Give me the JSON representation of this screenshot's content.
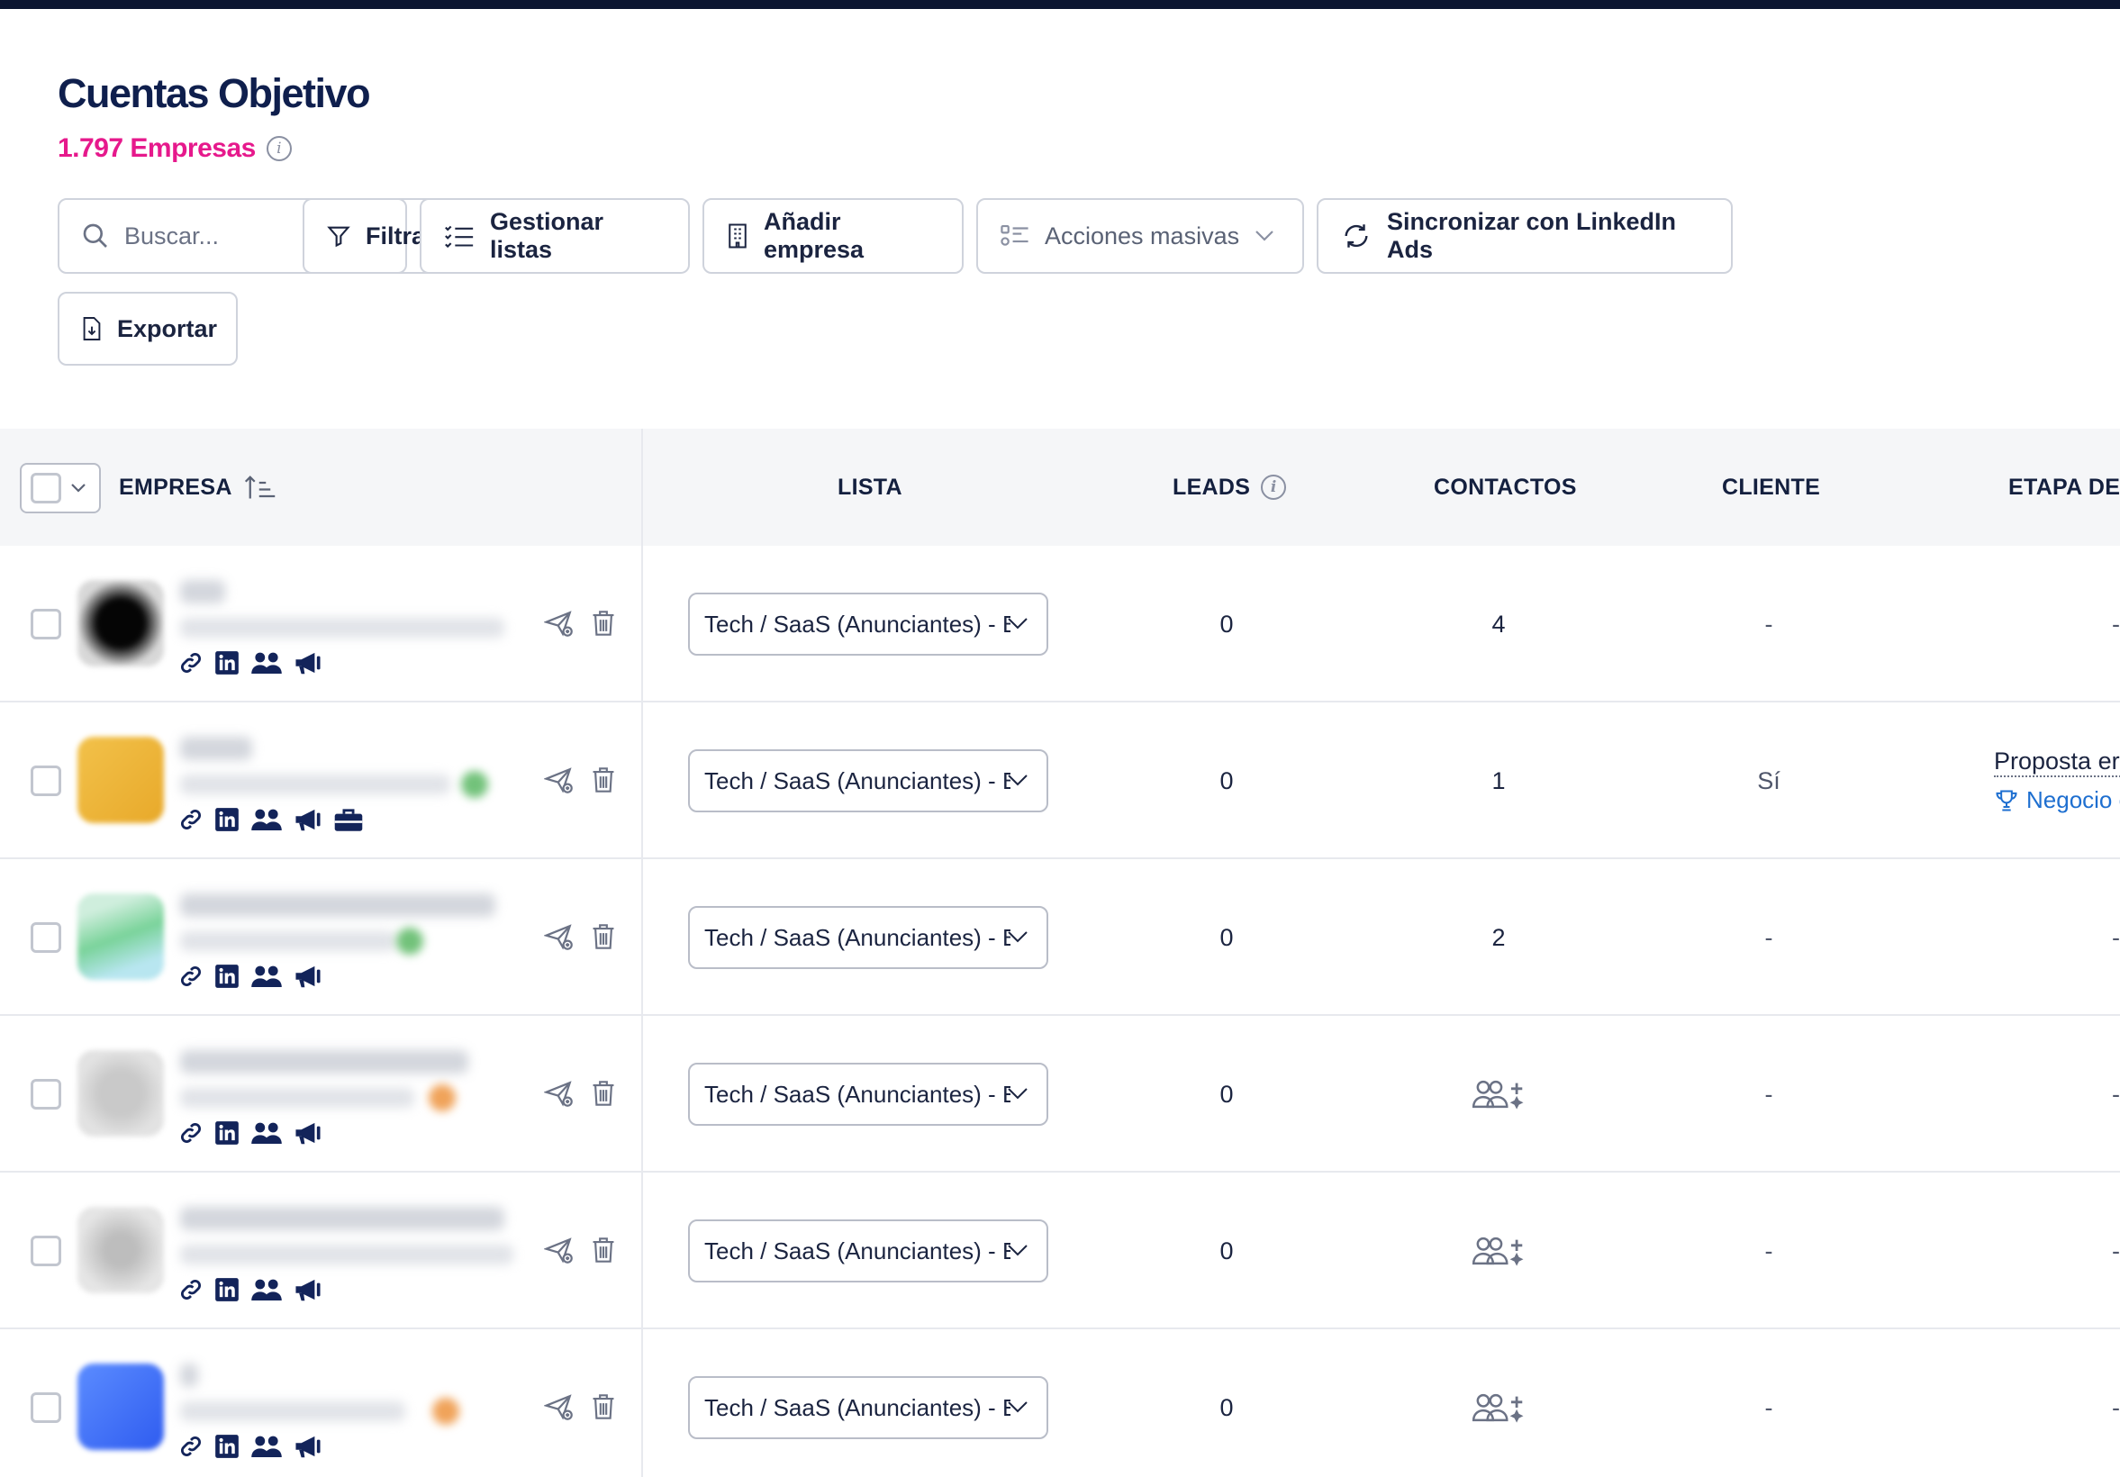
{
  "header": {
    "title": "Cuentas Objetivo",
    "count": "1.797 Empresas"
  },
  "toolbar": {
    "search_placeholder": "Buscar...",
    "filter_label": "Filtrar",
    "lists_label": "Gestionar listas",
    "add_label": "Añadir empresa",
    "bulk_label": "Acciones masivas",
    "sync_label": "Sincronizar con LinkedIn Ads",
    "export_label": "Exportar"
  },
  "table": {
    "columns": {
      "empresa": "EMPRESA",
      "lista": "LISTA",
      "leads": "LEADS",
      "contactos": "CONTACTOS",
      "cliente": "CLIENTE",
      "etapa": "ETAPA DEL"
    },
    "rows": [
      {
        "lista": "Tech / SaaS (Anunciantes) - B",
        "leads": "0",
        "contactos": "4",
        "cliente": "-",
        "etapa": "-"
      },
      {
        "lista": "Tech / SaaS (Anunciantes) - B",
        "leads": "0",
        "contactos": "1",
        "cliente": "Sí",
        "etapa_line1": "Proposta er",
        "etapa_line2": "Negocio c"
      },
      {
        "lista": "Tech / SaaS (Anunciantes) - B",
        "leads": "0",
        "contactos": "2",
        "cliente": "-",
        "etapa": "-"
      },
      {
        "lista": "Tech / SaaS (Anunciantes) - E",
        "leads": "0",
        "contactos_icon": "add-contacts-icon",
        "cliente": "-",
        "etapa": "-"
      },
      {
        "lista": "Tech / SaaS (Anunciantes) - E",
        "leads": "0",
        "contactos_icon": "add-contacts-icon",
        "cliente": "-",
        "etapa": "-"
      },
      {
        "lista": "Tech / SaaS (Anunciantes) - E",
        "leads": "0",
        "contactos_icon": "add-contacts-icon",
        "cliente": "-",
        "etapa": "-"
      }
    ]
  },
  "colors": {
    "accent_pink": "#e6198c",
    "navy": "#0f1f4d",
    "link_blue": "#1e6fd0",
    "icon_navy": "#13245a"
  }
}
